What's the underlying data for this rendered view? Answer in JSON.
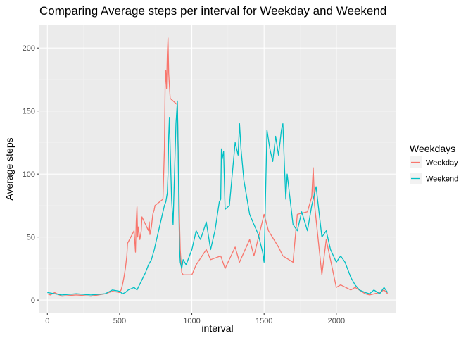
{
  "chart_data": {
    "type": "line",
    "title": "Comparing Average steps per interval for Weekday and Weekend",
    "xlabel": "interval",
    "ylabel": "Average steps",
    "xlim": [
      -55,
      2410
    ],
    "ylim": [
      -10,
      218
    ],
    "x_ticks": [
      0,
      500,
      1000,
      1500,
      2000
    ],
    "x_tick_labels": [
      "0",
      "500",
      "1000",
      "1500",
      "2000"
    ],
    "y_ticks": [
      0,
      50,
      100,
      150,
      200
    ],
    "y_tick_labels": [
      "0",
      "50",
      "100",
      "150",
      "200"
    ],
    "grid": true,
    "legend": {
      "title": "Weekdays",
      "position": "right"
    },
    "series": [
      {
        "name": "Weekday",
        "color": "#F8766D",
        "x": [
          0,
          20,
          50,
          100,
          200,
          300,
          400,
          450,
          500,
          510,
          520,
          530,
          540,
          550,
          555,
          600,
          610,
          615,
          620,
          625,
          630,
          640,
          650,
          655,
          700,
          705,
          710,
          720,
          730,
          740,
          745,
          800,
          810,
          815,
          820,
          825,
          830,
          835,
          840,
          845,
          850,
          900,
          905,
          910,
          915,
          920,
          925,
          930,
          940,
          1000,
          1030,
          1100,
          1130,
          1200,
          1230,
          1300,
          1330,
          1400,
          1430,
          1500,
          1530,
          1600,
          1630,
          1700,
          1730,
          1800,
          1830,
          1840,
          1845,
          1850,
          1900,
          1930,
          2000,
          2030,
          2100,
          2130,
          2200,
          2230,
          2300,
          2330,
          2355
        ],
        "y": [
          5,
          4,
          6,
          3,
          4,
          3,
          5,
          7,
          6,
          8,
          12,
          18,
          25,
          35,
          45,
          55,
          38,
          62,
          74,
          50,
          58,
          48,
          55,
          66,
          55,
          62,
          52,
          58,
          68,
          72,
          75,
          80,
          120,
          170,
          182,
          168,
          195,
          208,
          180,
          170,
          160,
          155,
          120,
          95,
          62,
          40,
          30,
          22,
          20,
          20,
          28,
          40,
          32,
          35,
          25,
          42,
          30,
          48,
          35,
          68,
          55,
          42,
          35,
          30,
          68,
          70,
          82,
          105,
          90,
          75,
          20,
          48,
          10,
          12,
          8,
          10,
          5,
          4,
          6,
          8,
          5
        ]
      },
      {
        "name": "Weekend",
        "color": "#00BFC4",
        "x": [
          0,
          50,
          100,
          200,
          300,
          400,
          450,
          500,
          520,
          540,
          560,
          600,
          620,
          650,
          680,
          700,
          720,
          740,
          750,
          780,
          800,
          810,
          820,
          830,
          835,
          840,
          845,
          850,
          860,
          870,
          880,
          890,
          900,
          905,
          910,
          915,
          920,
          930,
          940,
          960,
          1000,
          1030,
          1060,
          1100,
          1130,
          1160,
          1190,
          1200,
          1205,
          1210,
          1220,
          1230,
          1260,
          1300,
          1320,
          1330,
          1340,
          1360,
          1400,
          1430,
          1460,
          1490,
          1500,
          1520,
          1540,
          1560,
          1580,
          1600,
          1610,
          1620,
          1630,
          1640,
          1650,
          1660,
          1700,
          1730,
          1760,
          1800,
          1830,
          1860,
          1900,
          1930,
          1960,
          2000,
          2030,
          2060,
          2100,
          2130,
          2160,
          2200,
          2230,
          2260,
          2300,
          2330,
          2355
        ],
        "y": [
          6,
          5,
          4,
          5,
          4,
          5,
          8,
          7,
          5,
          6,
          8,
          10,
          8,
          15,
          22,
          28,
          32,
          40,
          45,
          60,
          70,
          75,
          78,
          85,
          100,
          130,
          145,
          120,
          80,
          60,
          100,
          140,
          158,
          120,
          70,
          40,
          30,
          25,
          32,
          28,
          40,
          55,
          48,
          62,
          40,
          55,
          78,
          80,
          120,
          112,
          118,
          72,
          75,
          125,
          115,
          140,
          120,
          95,
          68,
          60,
          52,
          38,
          30,
          135,
          120,
          110,
          130,
          115,
          125,
          135,
          140,
          110,
          80,
          100,
          60,
          55,
          70,
          55,
          75,
          90,
          50,
          55,
          40,
          30,
          35,
          30,
          18,
          12,
          8,
          6,
          5,
          8,
          5,
          10,
          6
        ]
      }
    ]
  }
}
